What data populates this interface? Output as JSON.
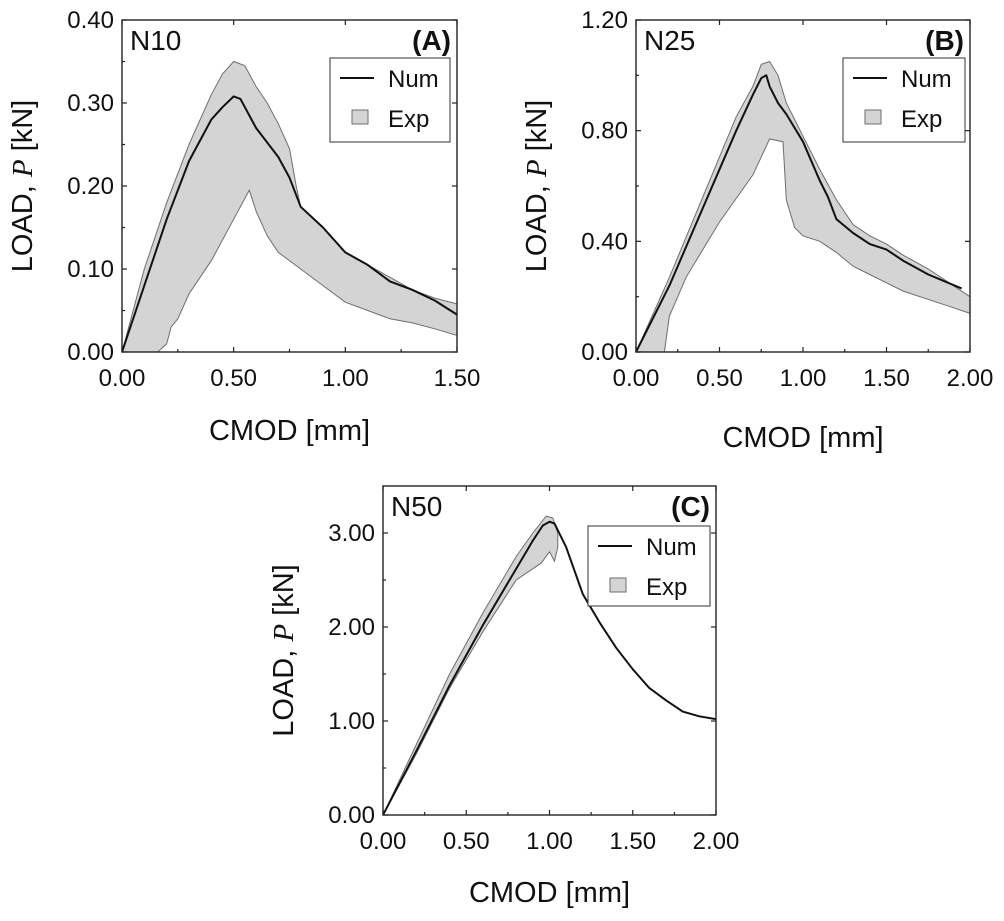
{
  "chart_data": [
    {
      "id": "A",
      "type": "area",
      "specimen": "N10",
      "panel_label": "(A)",
      "xlabel": "CMOD [mm]",
      "ylabel_prefix": "LOAD, ",
      "ylabel_var": "P",
      "ylabel_suffix": " [kN]",
      "xlim": [
        0,
        1.5
      ],
      "ylim": [
        0,
        0.4
      ],
      "xticks": [
        0,
        0.5,
        1.0,
        1.5
      ],
      "xtick_labels": [
        "0.00",
        "0.50",
        "1.00",
        "1.50"
      ],
      "yticks": [
        0,
        0.1,
        0.2,
        0.3,
        0.4
      ],
      "ytick_labels": [
        "0.00",
        "0.10",
        "0.20",
        "0.30",
        "0.40"
      ],
      "legend": {
        "position": "top-right",
        "items": [
          {
            "label": "Num",
            "kind": "line"
          },
          {
            "label": "Exp",
            "kind": "patch"
          }
        ]
      },
      "series": [
        {
          "name": "Exp",
          "kind": "band",
          "upper": [
            [
              0,
              0
            ],
            [
              0.1,
              0.1
            ],
            [
              0.2,
              0.18
            ],
            [
              0.3,
              0.25
            ],
            [
              0.4,
              0.31
            ],
            [
              0.45,
              0.335
            ],
            [
              0.5,
              0.35
            ],
            [
              0.55,
              0.345
            ],
            [
              0.58,
              0.33
            ],
            [
              0.6,
              0.32
            ],
            [
              0.65,
              0.3
            ],
            [
              0.7,
              0.275
            ],
            [
              0.75,
              0.245
            ],
            [
              0.78,
              0.2
            ],
            [
              0.8,
              0.175
            ],
            [
              0.9,
              0.15
            ],
            [
              1.0,
              0.12
            ],
            [
              1.1,
              0.105
            ],
            [
              1.2,
              0.09
            ],
            [
              1.3,
              0.075
            ],
            [
              1.4,
              0.065
            ],
            [
              1.5,
              0.058
            ]
          ],
          "lower": [
            [
              1.5,
              0.02
            ],
            [
              1.4,
              0.028
            ],
            [
              1.3,
              0.035
            ],
            [
              1.2,
              0.04
            ],
            [
              1.1,
              0.05
            ],
            [
              1.0,
              0.06
            ],
            [
              0.9,
              0.08
            ],
            [
              0.8,
              0.1
            ],
            [
              0.7,
              0.12
            ],
            [
              0.65,
              0.14
            ],
            [
              0.6,
              0.17
            ],
            [
              0.57,
              0.195
            ],
            [
              0.5,
              0.16
            ],
            [
              0.4,
              0.11
            ],
            [
              0.3,
              0.07
            ],
            [
              0.25,
              0.04
            ],
            [
              0.22,
              0.03
            ],
            [
              0.2,
              0.01
            ],
            [
              0.16,
              0
            ],
            [
              0,
              0
            ]
          ]
        },
        {
          "name": "Num",
          "kind": "line",
          "points": [
            [
              0,
              0
            ],
            [
              0.1,
              0.08
            ],
            [
              0.2,
              0.16
            ],
            [
              0.3,
              0.23
            ],
            [
              0.4,
              0.28
            ],
            [
              0.45,
              0.295
            ],
            [
              0.5,
              0.308
            ],
            [
              0.53,
              0.305
            ],
            [
              0.56,
              0.29
            ],
            [
              0.6,
              0.27
            ],
            [
              0.7,
              0.235
            ],
            [
              0.75,
              0.21
            ],
            [
              0.8,
              0.175
            ],
            [
              0.9,
              0.15
            ],
            [
              1.0,
              0.12
            ],
            [
              1.1,
              0.105
            ],
            [
              1.2,
              0.085
            ],
            [
              1.3,
              0.075
            ],
            [
              1.4,
              0.062
            ],
            [
              1.5,
              0.045
            ]
          ]
        }
      ]
    },
    {
      "id": "B",
      "type": "area",
      "specimen": "N25",
      "panel_label": "(B)",
      "xlabel": "CMOD [mm]",
      "ylabel_prefix": "LOAD, ",
      "ylabel_var": "P",
      "ylabel_suffix": " [kN]",
      "xlim": [
        0,
        2.0
      ],
      "ylim": [
        0,
        1.2
      ],
      "xticks": [
        0,
        0.5,
        1.0,
        1.5,
        2.0
      ],
      "xtick_labels": [
        "0.00",
        "0.50",
        "1.00",
        "1.50",
        "2.00"
      ],
      "yticks": [
        0,
        0.4,
        0.8,
        1.2
      ],
      "ytick_labels": [
        "0.00",
        "0.40",
        "0.80",
        "1.20"
      ],
      "legend": {
        "position": "top-right",
        "items": [
          {
            "label": "Num",
            "kind": "line"
          },
          {
            "label": "Exp",
            "kind": "patch"
          }
        ]
      },
      "series": [
        {
          "name": "Exp",
          "kind": "band",
          "upper": [
            [
              0,
              0
            ],
            [
              0.2,
              0.27
            ],
            [
              0.4,
              0.56
            ],
            [
              0.6,
              0.85
            ],
            [
              0.7,
              0.96
            ],
            [
              0.75,
              1.04
            ],
            [
              0.8,
              1.05
            ],
            [
              0.85,
              1.0
            ],
            [
              0.9,
              0.9
            ],
            [
              1.0,
              0.78
            ],
            [
              1.1,
              0.66
            ],
            [
              1.2,
              0.55
            ],
            [
              1.3,
              0.46
            ],
            [
              1.4,
              0.42
            ],
            [
              1.5,
              0.39
            ],
            [
              1.6,
              0.35
            ],
            [
              1.75,
              0.3
            ],
            [
              1.9,
              0.24
            ],
            [
              2.0,
              0.2
            ]
          ],
          "lower": [
            [
              2.0,
              0.14
            ],
            [
              1.9,
              0.16
            ],
            [
              1.8,
              0.18
            ],
            [
              1.6,
              0.22
            ],
            [
              1.5,
              0.25
            ],
            [
              1.4,
              0.28
            ],
            [
              1.3,
              0.31
            ],
            [
              1.2,
              0.36
            ],
            [
              1.1,
              0.4
            ],
            [
              1.0,
              0.42
            ],
            [
              0.95,
              0.45
            ],
            [
              0.9,
              0.55
            ],
            [
              0.88,
              0.76
            ],
            [
              0.8,
              0.77
            ],
            [
              0.7,
              0.64
            ],
            [
              0.5,
              0.47
            ],
            [
              0.3,
              0.27
            ],
            [
              0.2,
              0.13
            ],
            [
              0.17,
              0
            ],
            [
              0,
              0
            ]
          ]
        },
        {
          "name": "Num",
          "kind": "line",
          "points": [
            [
              0,
              0
            ],
            [
              0.2,
              0.24
            ],
            [
              0.4,
              0.52
            ],
            [
              0.6,
              0.8
            ],
            [
              0.7,
              0.93
            ],
            [
              0.75,
              0.99
            ],
            [
              0.78,
              1.0
            ],
            [
              0.8,
              0.96
            ],
            [
              0.85,
              0.9
            ],
            [
              0.9,
              0.86
            ],
            [
              1.0,
              0.76
            ],
            [
              1.1,
              0.62
            ],
            [
              1.15,
              0.56
            ],
            [
              1.2,
              0.48
            ],
            [
              1.3,
              0.43
            ],
            [
              1.4,
              0.39
            ],
            [
              1.5,
              0.37
            ],
            [
              1.6,
              0.33
            ],
            [
              1.75,
              0.28
            ],
            [
              1.95,
              0.23
            ]
          ]
        }
      ]
    },
    {
      "id": "C",
      "type": "area",
      "specimen": "N50",
      "panel_label": "(C)",
      "xlabel": "CMOD [mm]",
      "ylabel_prefix": "LOAD, ",
      "ylabel_var": "P",
      "ylabel_suffix": " [kN]",
      "xlim": [
        0,
        2.0
      ],
      "ylim": [
        0,
        3.5
      ],
      "xticks": [
        0,
        0.5,
        1.0,
        1.5,
        2.0
      ],
      "xtick_labels": [
        "0.00",
        "0.50",
        "1.00",
        "1.50",
        "2.00"
      ],
      "yticks": [
        0,
        1.0,
        2.0,
        3.0
      ],
      "ytick_labels": [
        "0.00",
        "1.00",
        "2.00",
        "3.00"
      ],
      "legend": {
        "position": "top-right",
        "items": [
          {
            "label": "Num",
            "kind": "line"
          },
          {
            "label": "Exp",
            "kind": "patch"
          }
        ]
      },
      "series": [
        {
          "name": "Exp",
          "kind": "band",
          "upper": [
            [
              0,
              0
            ],
            [
              0.2,
              0.75
            ],
            [
              0.4,
              1.5
            ],
            [
              0.6,
              2.15
            ],
            [
              0.8,
              2.75
            ],
            [
              0.9,
              3.0
            ],
            [
              0.98,
              3.18
            ],
            [
              1.02,
              3.16
            ],
            [
              1.05,
              3.0
            ]
          ],
          "lower": [
            [
              1.05,
              2.85
            ],
            [
              1.03,
              2.7
            ],
            [
              1.0,
              2.8
            ],
            [
              0.95,
              2.68
            ],
            [
              0.8,
              2.5
            ],
            [
              0.6,
              1.95
            ],
            [
              0.4,
              1.35
            ],
            [
              0.2,
              0.65
            ],
            [
              0,
              0
            ]
          ]
        },
        {
          "name": "Num",
          "kind": "line",
          "points": [
            [
              0,
              0
            ],
            [
              0.2,
              0.68
            ],
            [
              0.4,
              1.38
            ],
            [
              0.6,
              2.02
            ],
            [
              0.8,
              2.62
            ],
            [
              0.9,
              2.92
            ],
            [
              0.96,
              3.08
            ],
            [
              1.0,
              3.12
            ],
            [
              1.03,
              3.1
            ],
            [
              1.1,
              2.85
            ],
            [
              1.2,
              2.35
            ],
            [
              1.3,
              2.05
            ],
            [
              1.4,
              1.78
            ],
            [
              1.5,
              1.55
            ],
            [
              1.6,
              1.35
            ],
            [
              1.7,
              1.22
            ],
            [
              1.8,
              1.1
            ],
            [
              1.9,
              1.05
            ],
            [
              2.0,
              1.02
            ]
          ]
        }
      ]
    }
  ]
}
